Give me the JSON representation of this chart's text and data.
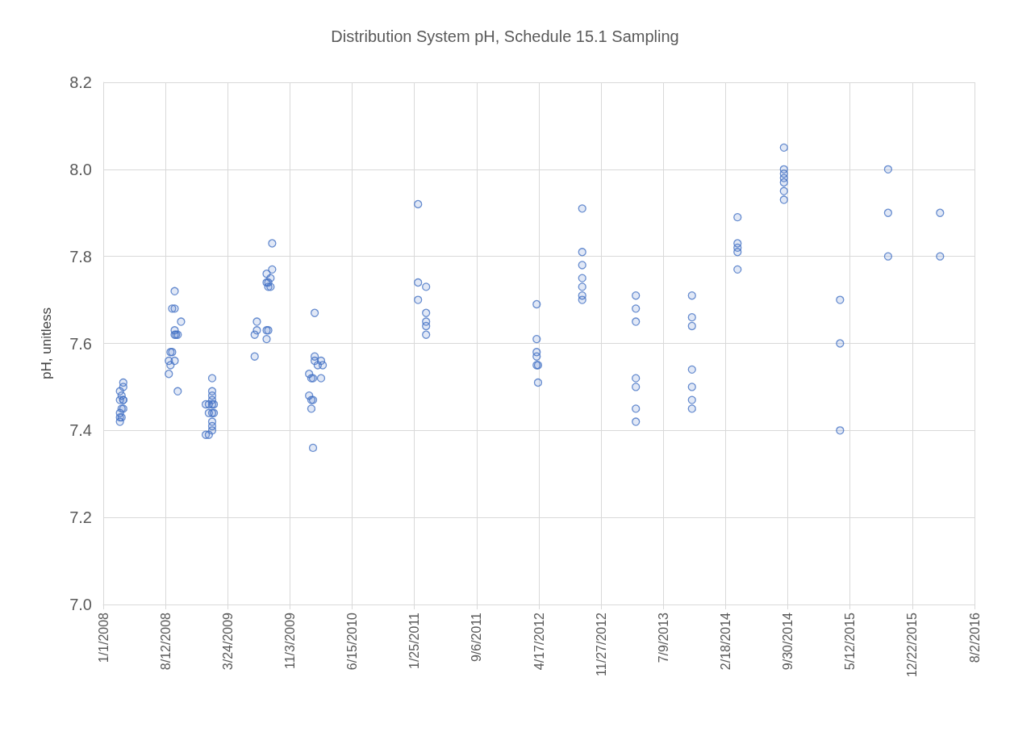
{
  "chart_data": {
    "type": "scatter",
    "title": "Distribution System pH, Schedule 15.1 Sampling",
    "ylabel": "pH, unitless",
    "marker": "circle",
    "grid": true,
    "xlim": [
      "2008-01-01",
      "2016-08-02"
    ],
    "xticks": [
      {
        "value": "2008-01-01",
        "label": "1/1/2008"
      },
      {
        "value": "2008-08-12",
        "label": "8/12/2008"
      },
      {
        "value": "2009-03-24",
        "label": "3/24/2009"
      },
      {
        "value": "2009-11-03",
        "label": "11/3/2009"
      },
      {
        "value": "2010-06-15",
        "label": "6/15/2010"
      },
      {
        "value": "2011-01-25",
        "label": "1/25/2011"
      },
      {
        "value": "2011-09-06",
        "label": "9/6/2011"
      },
      {
        "value": "2012-04-17",
        "label": "4/17/2012"
      },
      {
        "value": "2012-11-27",
        "label": "11/27/2012"
      },
      {
        "value": "2013-07-09",
        "label": "7/9/2013"
      },
      {
        "value": "2014-02-18",
        "label": "2/18/2014"
      },
      {
        "value": "2014-09-30",
        "label": "9/30/2014"
      },
      {
        "value": "2015-05-12",
        "label": "5/12/2015"
      },
      {
        "value": "2015-12-22",
        "label": "12/22/2015"
      },
      {
        "value": "2016-08-02",
        "label": "8/2/2016"
      }
    ],
    "ylim": [
      7.0,
      8.2
    ],
    "yticks": [
      {
        "value": 7.0,
        "label": "7.0"
      },
      {
        "value": 7.2,
        "label": "7.2"
      },
      {
        "value": 7.4,
        "label": "7.4"
      },
      {
        "value": 7.6,
        "label": "7.6"
      },
      {
        "value": 7.8,
        "label": "7.8"
      },
      {
        "value": 8.0,
        "label": "8.0"
      },
      {
        "value": 8.2,
        "label": "8.2"
      }
    ],
    "series": [
      {
        "color": "#4472c4",
        "x": [
          "2008-03-01",
          "2008-03-01",
          "2008-03-01",
          "2008-03-01",
          "2008-03-01",
          "2008-03-07",
          "2008-03-07",
          "2008-03-07",
          "2008-03-13",
          "2008-03-13",
          "2008-03-13",
          "2008-03-13",
          "2008-03-13",
          "2008-08-24",
          "2008-08-24",
          "2008-08-30",
          "2008-08-30",
          "2008-09-05",
          "2008-09-05",
          "2008-09-14",
          "2008-09-14",
          "2008-09-14",
          "2008-09-14",
          "2008-09-14",
          "2008-09-19",
          "2008-09-25",
          "2008-09-25",
          "2008-10-07",
          "2009-01-04",
          "2009-01-04",
          "2009-01-15",
          "2009-01-15",
          "2009-01-15",
          "2009-01-27",
          "2009-01-27",
          "2009-01-27",
          "2009-01-27",
          "2009-01-27",
          "2009-01-27",
          "2009-01-27",
          "2009-01-27",
          "2009-01-27",
          "2009-02-02",
          "2009-02-02",
          "2009-06-29",
          "2009-06-29",
          "2009-07-07",
          "2009-07-07",
          "2009-08-11",
          "2009-08-11",
          "2009-08-11",
          "2009-08-11",
          "2009-08-17",
          "2009-08-17",
          "2009-08-17",
          "2009-08-25",
          "2009-08-25",
          "2009-08-31",
          "2009-08-31",
          "2010-01-11",
          "2010-01-11",
          "2010-01-19",
          "2010-01-19",
          "2010-01-19",
          "2010-01-25",
          "2010-01-25",
          "2010-01-25",
          "2010-01-31",
          "2010-01-31",
          "2010-01-31",
          "2010-02-11",
          "2010-02-23",
          "2010-02-23",
          "2010-03-01",
          "2011-02-07",
          "2011-02-07",
          "2011-02-07",
          "2011-03-08",
          "2011-03-08",
          "2011-03-08",
          "2011-03-08",
          "2011-03-08",
          "2012-04-09",
          "2012-04-09",
          "2012-04-09",
          "2012-04-09",
          "2012-04-09",
          "2012-04-14",
          "2012-04-14",
          "2012-09-20",
          "2012-09-20",
          "2012-09-20",
          "2012-09-20",
          "2012-09-20",
          "2012-09-20",
          "2012-09-20",
          "2013-04-01",
          "2013-04-01",
          "2013-04-01",
          "2013-04-01",
          "2013-04-01",
          "2013-04-01",
          "2013-04-01",
          "2013-10-20",
          "2013-10-20",
          "2013-10-20",
          "2013-10-20",
          "2013-10-20",
          "2013-10-20",
          "2013-10-20",
          "2014-04-02",
          "2014-04-02",
          "2014-04-02",
          "2014-04-02",
          "2014-04-02",
          "2014-09-16",
          "2014-09-16",
          "2014-09-16",
          "2014-09-16",
          "2014-09-16",
          "2014-09-16",
          "2014-09-16",
          "2015-04-06",
          "2015-04-06",
          "2015-04-06",
          "2015-09-26",
          "2015-09-26",
          "2015-09-26",
          "2016-03-31",
          "2016-03-31"
        ],
        "values": [
          7.42,
          7.43,
          7.44,
          7.47,
          7.49,
          7.43,
          7.45,
          7.48,
          7.45,
          7.47,
          7.5,
          7.51,
          7.47,
          7.56,
          7.53,
          7.58,
          7.55,
          7.58,
          7.68,
          7.68,
          7.72,
          7.62,
          7.63,
          7.56,
          7.62,
          7.62,
          7.49,
          7.65,
          7.39,
          7.46,
          7.39,
          7.46,
          7.44,
          7.52,
          7.49,
          7.48,
          7.47,
          7.46,
          7.44,
          7.42,
          7.41,
          7.4,
          7.46,
          7.44,
          7.57,
          7.62,
          7.65,
          7.63,
          7.76,
          7.74,
          7.63,
          7.61,
          7.74,
          7.73,
          7.63,
          7.75,
          7.73,
          7.77,
          7.83,
          7.48,
          7.53,
          7.47,
          7.52,
          7.45,
          7.52,
          7.36,
          7.47,
          7.57,
          7.56,
          7.67,
          7.55,
          7.56,
          7.52,
          7.55,
          7.92,
          7.74,
          7.7,
          7.73,
          7.67,
          7.65,
          7.64,
          7.62,
          7.69,
          7.61,
          7.58,
          7.57,
          7.55,
          7.55,
          7.51,
          7.91,
          7.81,
          7.78,
          7.75,
          7.73,
          7.71,
          7.7,
          7.71,
          7.68,
          7.65,
          7.52,
          7.5,
          7.45,
          7.42,
          7.71,
          7.66,
          7.64,
          7.54,
          7.5,
          7.47,
          7.45,
          7.89,
          7.83,
          7.82,
          7.81,
          7.77,
          8.05,
          8.0,
          7.99,
          7.98,
          7.97,
          7.95,
          7.93,
          7.7,
          7.6,
          7.4,
          8.0,
          7.9,
          7.8,
          7.9,
          7.8
        ]
      }
    ]
  }
}
